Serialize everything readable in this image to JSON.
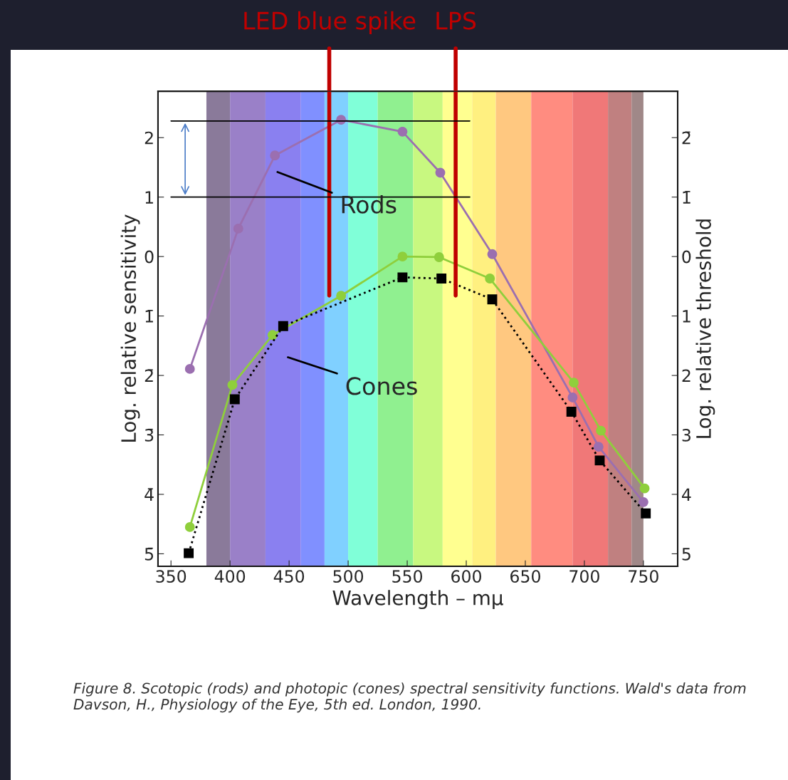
{
  "chart_data": {
    "type": "line",
    "xlabel": "Wavelength – mμ",
    "ylabel": "Log. relative sensitivity",
    "y2label": "Log. relative threshold",
    "xlim": [
      339,
      779
    ],
    "xticks": [
      350,
      400,
      450,
      500,
      550,
      600,
      650,
      700,
      750
    ],
    "ylim": [
      -5.21,
      2.78
    ],
    "yticks": [
      2,
      1,
      0,
      {
        "value": -1,
        "label": "1̄"
      },
      {
        "value": -2,
        "label": "2̄"
      },
      {
        "value": -3,
        "label": "3̄"
      },
      {
        "value": -4,
        "label": "4̄"
      },
      {
        "value": -5,
        "label": "5̄"
      }
    ],
    "y2lim": [
      5.21,
      -2.78
    ],
    "y2ticks": [
      {
        "value": -2,
        "label": "2̄"
      },
      {
        "value": -1,
        "label": "1̄"
      },
      0,
      1,
      2,
      3,
      4,
      5
    ],
    "grid": false,
    "series": [
      {
        "color": "#9b6fb0",
        "marker": "circle",
        "line_style": "solid",
        "x": [
          366,
          407,
          438,
          494,
          546,
          578,
          622,
          690,
          712,
          750
        ],
        "values": [
          -1.89,
          0.47,
          1.7,
          2.3,
          2.1,
          1.41,
          0.04,
          -2.37,
          -3.2,
          -4.13
        ]
      },
      {
        "color": "#8fcf3c",
        "marker": "circle",
        "line_style": "solid",
        "x": [
          366,
          402,
          436,
          494,
          546,
          577,
          620,
          691,
          714,
          751
        ],
        "values": [
          -4.55,
          -2.16,
          -1.32,
          -0.66,
          0,
          -0.01,
          -0.37,
          -2.12,
          -2.93,
          -3.9
        ]
      },
      {
        "color": "#000000",
        "marker": "square",
        "line_style": "dotted",
        "x": [
          365,
          404,
          445,
          546,
          579,
          622,
          689,
          713,
          752
        ],
        "values": [
          -4.99,
          -2.4,
          -1.17,
          -0.35,
          -0.37,
          -0.72,
          -2.61,
          -3.43,
          -4.32
        ]
      }
    ],
    "ref_lines": [
      {
        "axis": "x",
        "value": 484,
        "label": "LED blue spike",
        "color": "#c00000"
      },
      {
        "axis": "x",
        "value": 591,
        "label": "LPS",
        "color": "#c00000"
      },
      {
        "axis": "y",
        "value": 2.28,
        "color": "#000000"
      },
      {
        "axis": "y",
        "value": 1.0,
        "color": "#000000"
      }
    ],
    "annotations": [
      "Rods",
      "Cones",
      "Figure 8. Scotopic (rods) and photopic (cones) spectral sensitivity functions. Wald's data from Davson, H., Physiology of the Eye, 5th ed. London, 1990."
    ]
  }
}
